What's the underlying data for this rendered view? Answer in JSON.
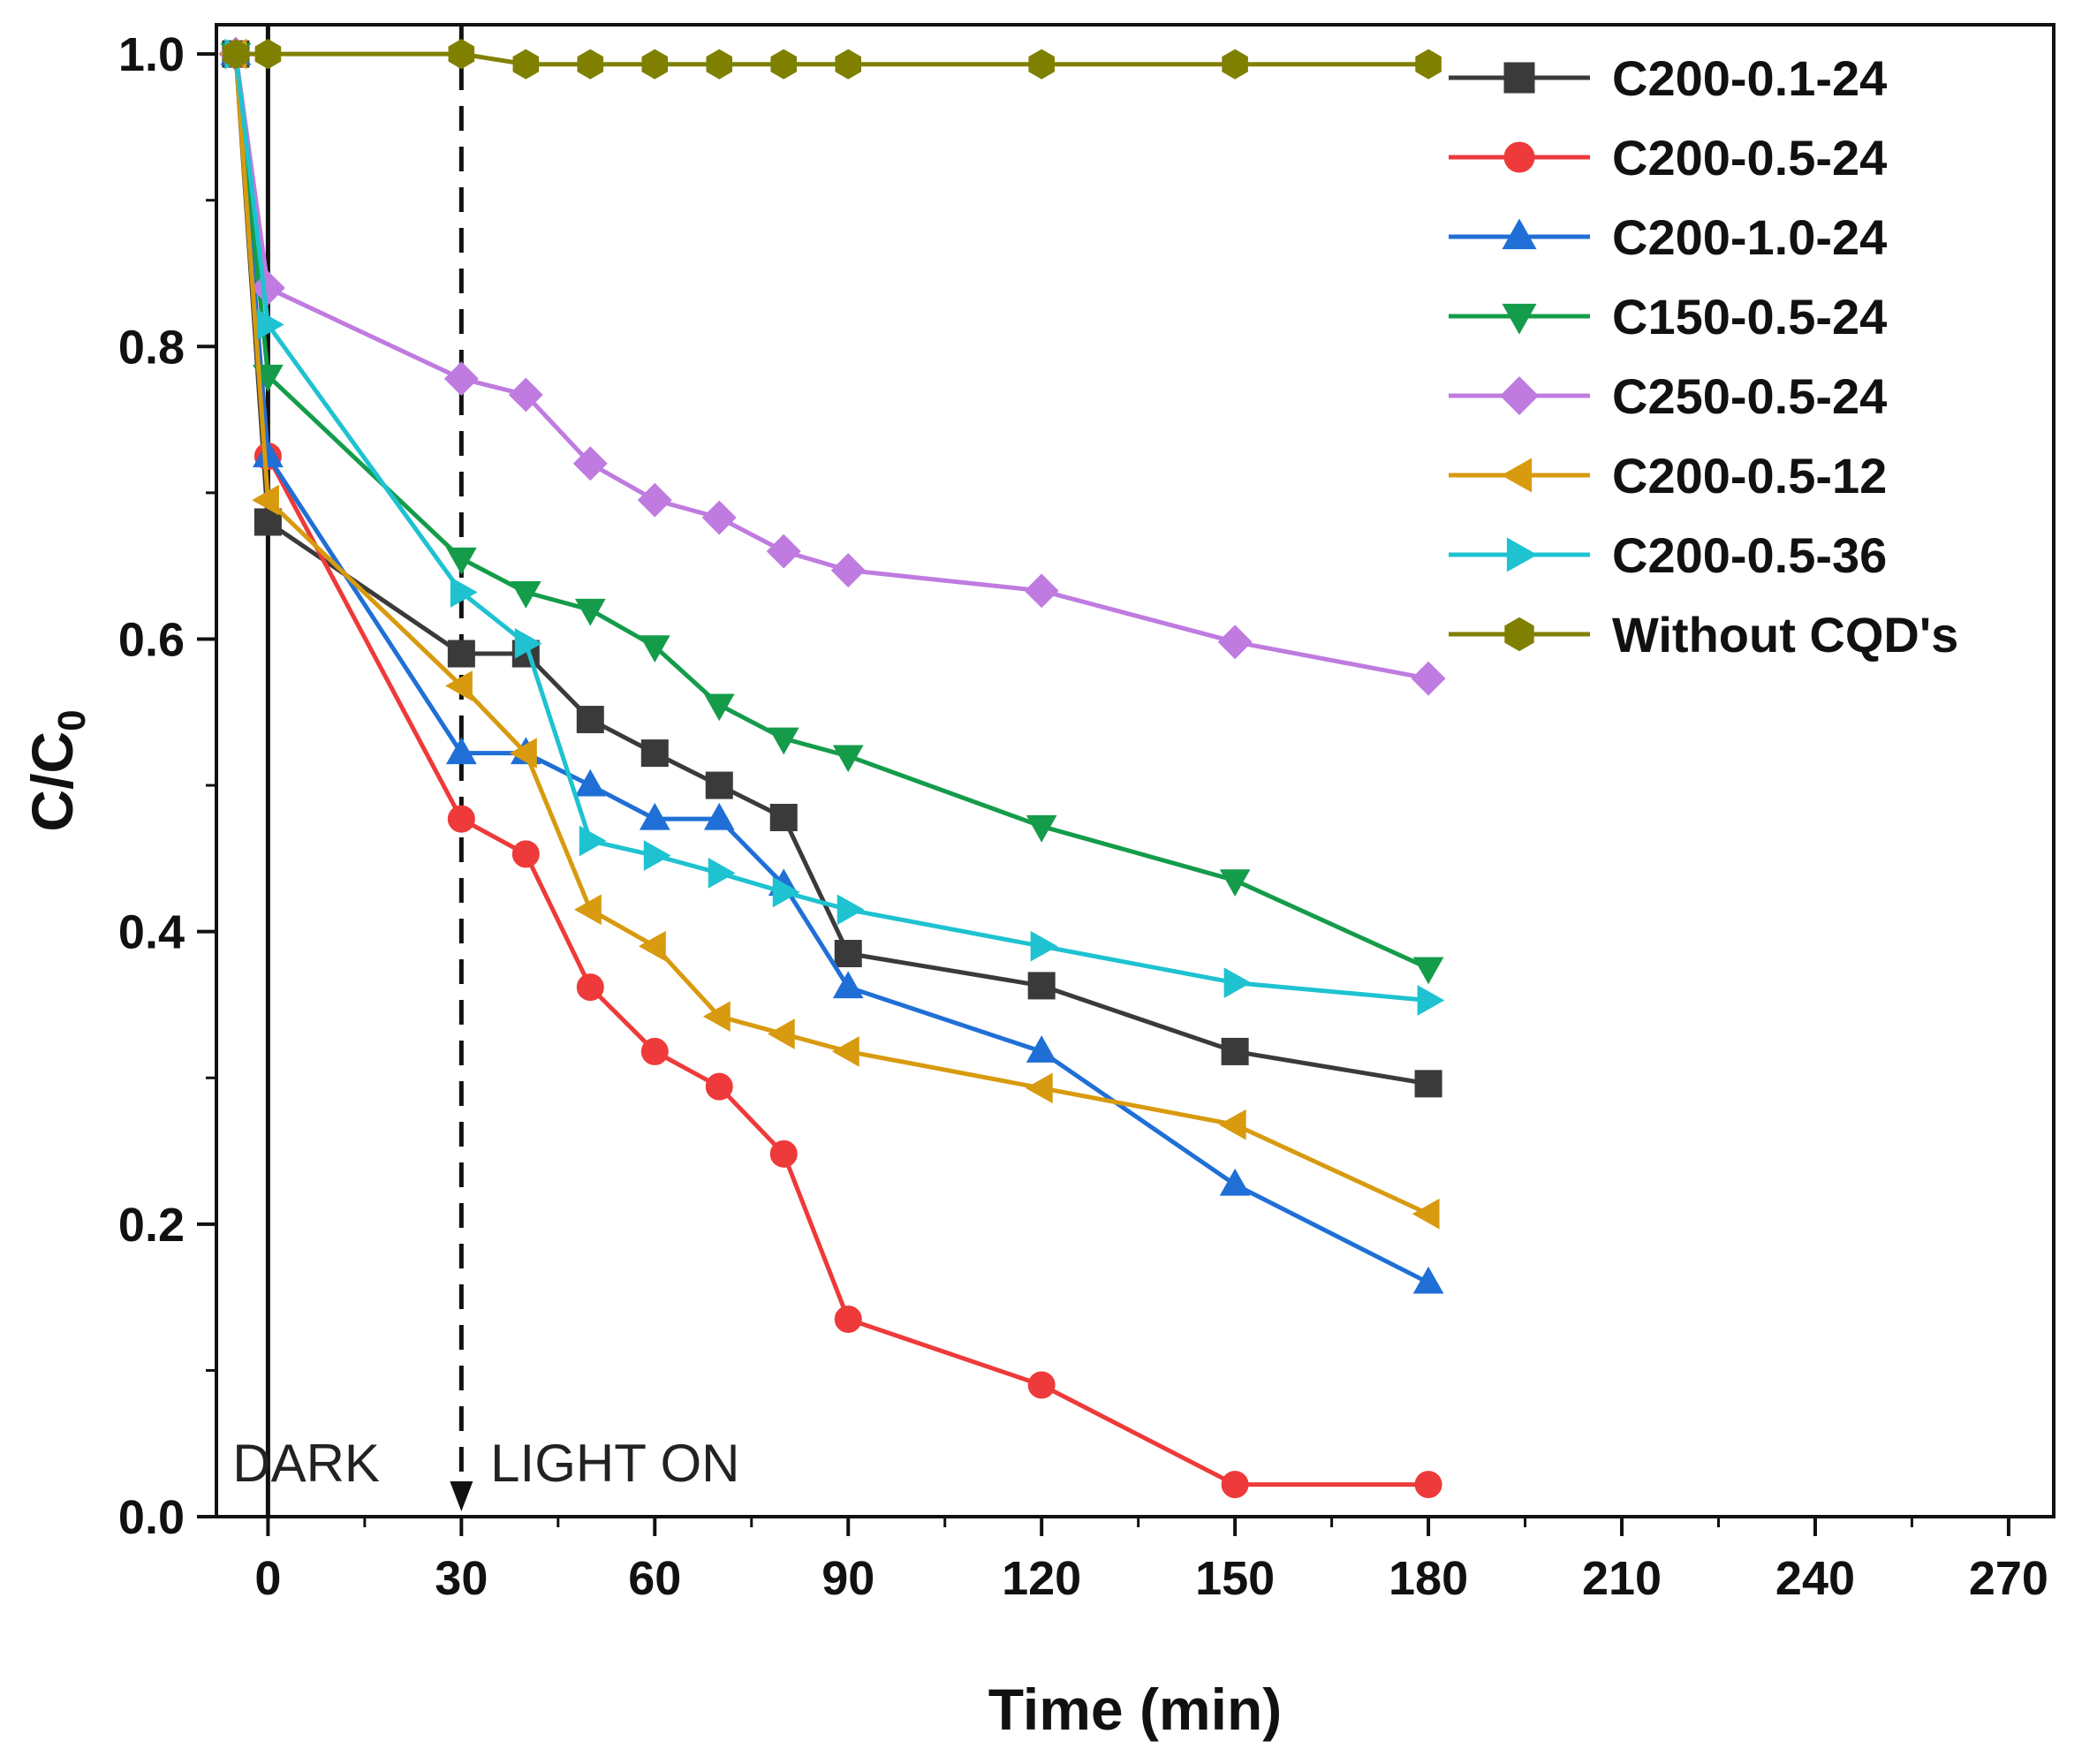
{
  "chart_data": {
    "type": "line",
    "title": "",
    "xlabel": "Time (min)",
    "ylabel": "C/C",
    "ylabel_sub": "0",
    "xlim": [
      -8,
      277
    ],
    "ylim": [
      0.0,
      1.02
    ],
    "xticks": [
      0,
      30,
      60,
      90,
      120,
      150,
      180,
      210,
      240,
      270
    ],
    "xtick_labels": [
      "0",
      "30",
      "60",
      "90",
      "120",
      "150",
      "180",
      "210",
      "240",
      "270"
    ],
    "yticks": [
      0.0,
      0.2,
      0.4,
      0.6,
      0.8,
      1.0
    ],
    "ytick_labels": [
      "0.0",
      "0.2",
      "0.4",
      "0.6",
      "0.8",
      "1.0"
    ],
    "grid": false,
    "legend_position": "top-right",
    "annotations": {
      "dark_label": "DARK",
      "light_label": "LIGHT ON",
      "dark_line_x": 0,
      "light_line_x": 30
    },
    "series": [
      {
        "name": "C200-0.1-24",
        "color": "#3a3a3a",
        "marker": "square",
        "x": [
          -5,
          0,
          30,
          40,
          50,
          60,
          70,
          80,
          90,
          120,
          150,
          180
        ],
        "values": [
          1.0,
          0.68,
          0.59,
          0.59,
          0.545,
          0.522,
          0.5,
          0.478,
          0.385,
          0.363,
          0.318,
          0.296
        ]
      },
      {
        "name": "C200-0.5-24",
        "color": "#ee3a3a",
        "marker": "circle",
        "x": [
          -5,
          0,
          30,
          40,
          50,
          60,
          70,
          80,
          90,
          120,
          150,
          180
        ],
        "values": [
          1.0,
          0.725,
          0.477,
          0.453,
          0.362,
          0.318,
          0.294,
          0.248,
          0.135,
          0.09,
          0.022,
          0.022
        ]
      },
      {
        "name": "C200-1.0-24",
        "color": "#1f6fd6",
        "marker": "triangle-up",
        "x": [
          -5,
          0,
          30,
          40,
          50,
          60,
          70,
          80,
          90,
          120,
          150,
          180
        ],
        "values": [
          1.0,
          0.725,
          0.522,
          0.522,
          0.5,
          0.477,
          0.477,
          0.432,
          0.362,
          0.318,
          0.227,
          0.16
        ]
      },
      {
        "name": "C150-0.5-24",
        "color": "#149c4a",
        "marker": "triangle-down",
        "x": [
          -5,
          0,
          30,
          40,
          50,
          60,
          70,
          80,
          90,
          120,
          150,
          180
        ],
        "values": [
          1.0,
          0.78,
          0.655,
          0.632,
          0.62,
          0.595,
          0.555,
          0.532,
          0.52,
          0.472,
          0.435,
          0.375
        ]
      },
      {
        "name": "C250-0.5-24",
        "color": "#bf7be0",
        "marker": "diamond",
        "x": [
          -5,
          0,
          30,
          40,
          50,
          60,
          70,
          80,
          90,
          120,
          150,
          180
        ],
        "values": [
          1.0,
          0.84,
          0.778,
          0.767,
          0.72,
          0.695,
          0.683,
          0.66,
          0.647,
          0.633,
          0.598,
          0.573
        ]
      },
      {
        "name": "C200-0.5-12",
        "color": "#d89a0e",
        "marker": "triangle-left",
        "x": [
          -5,
          0,
          30,
          40,
          50,
          60,
          70,
          80,
          90,
          120,
          150,
          180
        ],
        "values": [
          1.0,
          0.695,
          0.568,
          0.522,
          0.415,
          0.39,
          0.342,
          0.33,
          0.318,
          0.293,
          0.268,
          0.207
        ]
      },
      {
        "name": "C200-0.5-36",
        "color": "#1ec2d0",
        "marker": "triangle-right",
        "x": [
          -5,
          0,
          30,
          40,
          50,
          60,
          70,
          80,
          90,
          120,
          150,
          180
        ],
        "values": [
          1.0,
          0.815,
          0.632,
          0.597,
          0.462,
          0.452,
          0.44,
          0.427,
          0.415,
          0.39,
          0.365,
          0.353
        ]
      },
      {
        "name": "Without CQD's",
        "color": "#808000",
        "marker": "hexagon",
        "x": [
          -5,
          0,
          30,
          40,
          50,
          60,
          70,
          80,
          90,
          120,
          150,
          180
        ],
        "values": [
          1.0,
          1.0,
          1.0,
          0.993,
          0.993,
          0.993,
          0.993,
          0.993,
          0.993,
          0.993,
          0.993,
          0.993
        ]
      }
    ]
  }
}
